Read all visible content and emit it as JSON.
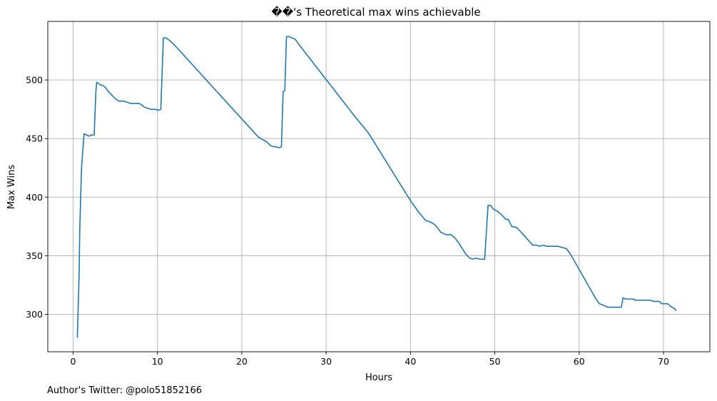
{
  "chart_data": {
    "type": "line",
    "title": "��'s Theoretical max wins achievable",
    "xlabel": "Hours",
    "ylabel": "Max Wins",
    "xlim": [
      -3,
      75.5
    ],
    "ylim": [
      268,
      550
    ],
    "xticks": [
      0,
      10,
      20,
      30,
      40,
      50,
      60,
      70
    ],
    "yticks": [
      300,
      350,
      400,
      450,
      500
    ],
    "grid": true,
    "series": [
      {
        "color": "#1f77b4",
        "points": [
          [
            0.5,
            280
          ],
          [
            0.7,
            330
          ],
          [
            0.8,
            375
          ],
          [
            1.0,
            425
          ],
          [
            1.3,
            454
          ],
          [
            1.6,
            453
          ],
          [
            1.9,
            452
          ],
          [
            2.1,
            453
          ],
          [
            2.5,
            453
          ],
          [
            2.7,
            490
          ],
          [
            2.8,
            498
          ],
          [
            3.2,
            496
          ],
          [
            3.6,
            495
          ],
          [
            3.9,
            493
          ],
          [
            4.2,
            490
          ],
          [
            4.6,
            487
          ],
          [
            5.0,
            484
          ],
          [
            5.4,
            482
          ],
          [
            6.0,
            482
          ],
          [
            6.4,
            481
          ],
          [
            6.8,
            480
          ],
          [
            7.3,
            480
          ],
          [
            7.8,
            480
          ],
          [
            8.1,
            479
          ],
          [
            8.4,
            477
          ],
          [
            8.8,
            476
          ],
          [
            9.2,
            475
          ],
          [
            9.8,
            475
          ],
          [
            10.1,
            474
          ],
          [
            10.4,
            475
          ],
          [
            10.7,
            536
          ],
          [
            11.0,
            536
          ],
          [
            11.4,
            534
          ],
          [
            12.0,
            530
          ],
          [
            22.0,
            451
          ],
          [
            22.5,
            449
          ],
          [
            23.0,
            447
          ],
          [
            23.4,
            444
          ],
          [
            23.8,
            443
          ],
          [
            24.1,
            443
          ],
          [
            24.4,
            442
          ],
          [
            24.7,
            443
          ],
          [
            24.9,
            490
          ],
          [
            25.1,
            491
          ],
          [
            25.3,
            537
          ],
          [
            25.6,
            537
          ],
          [
            25.9,
            536
          ],
          [
            26.3,
            535
          ],
          [
            26.7,
            531
          ],
          [
            33.5,
            468
          ],
          [
            35.0,
            455
          ],
          [
            40.0,
            397
          ],
          [
            41.0,
            387
          ],
          [
            41.8,
            380
          ],
          [
            42.3,
            379
          ],
          [
            42.8,
            377
          ],
          [
            43.2,
            374
          ],
          [
            43.6,
            370
          ],
          [
            44.2,
            368
          ],
          [
            44.8,
            368
          ],
          [
            45.3,
            365
          ],
          [
            45.8,
            360
          ],
          [
            46.5,
            352
          ],
          [
            47.0,
            348
          ],
          [
            47.4,
            347
          ],
          [
            47.8,
            348
          ],
          [
            48.2,
            347
          ],
          [
            48.8,
            347
          ],
          [
            49.2,
            393
          ],
          [
            49.5,
            393
          ],
          [
            49.8,
            390
          ],
          [
            50.3,
            388
          ],
          [
            50.8,
            385
          ],
          [
            51.3,
            381
          ],
          [
            51.6,
            381
          ],
          [
            52.0,
            375
          ],
          [
            52.6,
            374
          ],
          [
            53.0,
            371
          ],
          [
            53.5,
            367
          ],
          [
            54.0,
            363
          ],
          [
            54.5,
            359
          ],
          [
            55.0,
            359
          ],
          [
            55.3,
            358
          ],
          [
            55.7,
            359
          ],
          [
            56.2,
            358
          ],
          [
            57.5,
            358
          ],
          [
            58.0,
            357
          ],
          [
            58.5,
            356
          ],
          [
            59.0,
            351
          ],
          [
            62.0,
            313
          ],
          [
            62.4,
            309
          ],
          [
            62.8,
            308
          ],
          [
            63.4,
            306
          ],
          [
            65.0,
            306
          ],
          [
            65.2,
            314
          ],
          [
            65.5,
            313
          ],
          [
            66.4,
            313
          ],
          [
            66.7,
            312
          ],
          [
            68.5,
            312
          ],
          [
            68.8,
            311
          ],
          [
            69.5,
            311
          ],
          [
            69.8,
            309
          ],
          [
            70.5,
            309
          ],
          [
            71.0,
            306
          ],
          [
            71.3,
            305
          ],
          [
            71.5,
            303
          ]
        ]
      }
    ]
  },
  "footer_text": "Author's Twitter: @polo51852166"
}
